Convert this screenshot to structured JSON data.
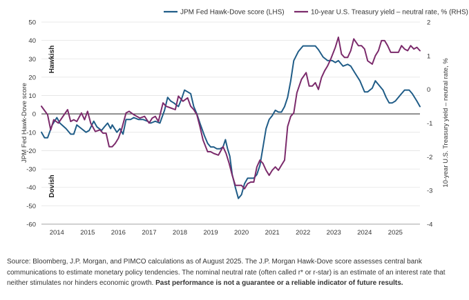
{
  "chart_data": {
    "type": "line",
    "legend_position": "top",
    "grid": true,
    "x_ticks": [
      "2014",
      "2015",
      "2016",
      "2017",
      "2018",
      "2019",
      "2020",
      "2021",
      "2022",
      "2023",
      "2024",
      "2025"
    ],
    "y_left": {
      "label": "JPM Fed Hawk-Dove score",
      "ylim": [
        -60,
        50
      ],
      "ticks": [
        "50",
        "40",
        "30",
        "20",
        "10",
        "0",
        "-10",
        "-20",
        "-30",
        "-40",
        "-50",
        "-60"
      ]
    },
    "y_right": {
      "label": "10-year U.S. Treasury yield – neutral rate, %",
      "ylim": [
        -4,
        2
      ],
      "ticks": [
        "2",
        "1",
        "0",
        "-1",
        "-2",
        "-3",
        "-4"
      ]
    },
    "zone_labels": {
      "hawkish": "Hawkish",
      "dovish": "Dovish"
    },
    "series": [
      {
        "name": "JPM Fed Hawk-Dove score (LHS)",
        "axis": "left",
        "color": "#1f5c87",
        "points": [
          [
            2014.0,
            -10
          ],
          [
            2014.1,
            -13
          ],
          [
            2014.2,
            -13
          ],
          [
            2014.35,
            -6
          ],
          [
            2014.5,
            -2
          ],
          [
            2014.6,
            -5
          ],
          [
            2014.8,
            -8
          ],
          [
            2014.95,
            -11
          ],
          [
            2015.05,
            -11
          ],
          [
            2015.15,
            -6
          ],
          [
            2015.3,
            -8
          ],
          [
            2015.45,
            -10
          ],
          [
            2015.55,
            -9
          ],
          [
            2015.7,
            -4
          ],
          [
            2015.8,
            -7
          ],
          [
            2015.95,
            -9
          ],
          [
            2016.05,
            -7
          ],
          [
            2016.15,
            -5
          ],
          [
            2016.25,
            -8
          ],
          [
            2016.3,
            -6
          ],
          [
            2016.45,
            -10
          ],
          [
            2016.55,
            -8
          ],
          [
            2016.65,
            -11
          ],
          [
            2016.75,
            -3
          ],
          [
            2016.9,
            -3
          ],
          [
            2017.0,
            -2
          ],
          [
            2017.15,
            -3
          ],
          [
            2017.3,
            -3
          ],
          [
            2017.45,
            -4
          ],
          [
            2017.55,
            -5
          ],
          [
            2017.7,
            -4
          ],
          [
            2017.85,
            -5
          ],
          [
            2018.0,
            2
          ],
          [
            2018.1,
            9
          ],
          [
            2018.2,
            7
          ],
          [
            2018.3,
            6
          ],
          [
            2018.45,
            4
          ],
          [
            2018.55,
            8
          ],
          [
            2018.65,
            13
          ],
          [
            2018.75,
            12
          ],
          [
            2018.85,
            11
          ],
          [
            2018.95,
            4
          ],
          [
            2019.05,
            0
          ],
          [
            2019.15,
            -5
          ],
          [
            2019.3,
            -12
          ],
          [
            2019.4,
            -16
          ],
          [
            2019.5,
            -18
          ],
          [
            2019.6,
            -18
          ],
          [
            2019.7,
            -19
          ],
          [
            2019.8,
            -19
          ],
          [
            2019.9,
            -18
          ],
          [
            2019.98,
            -14
          ],
          [
            2020.05,
            -19
          ],
          [
            2020.12,
            -23
          ],
          [
            2020.2,
            -33
          ],
          [
            2020.3,
            -40
          ],
          [
            2020.4,
            -46
          ],
          [
            2020.5,
            -44
          ],
          [
            2020.6,
            -38
          ],
          [
            2020.7,
            -35
          ],
          [
            2020.8,
            -35
          ],
          [
            2020.9,
            -35
          ],
          [
            2021.0,
            -33
          ],
          [
            2021.1,
            -28
          ],
          [
            2021.2,
            -18
          ],
          [
            2021.3,
            -8
          ],
          [
            2021.4,
            -3
          ],
          [
            2021.5,
            -1
          ],
          [
            2021.6,
            2
          ],
          [
            2021.7,
            1
          ],
          [
            2021.8,
            1
          ],
          [
            2021.9,
            4
          ],
          [
            2022.0,
            9
          ],
          [
            2022.1,
            18
          ],
          [
            2022.2,
            29
          ],
          [
            2022.35,
            34
          ],
          [
            2022.5,
            37
          ],
          [
            2022.65,
            37
          ],
          [
            2022.8,
            37
          ],
          [
            2022.9,
            37
          ],
          [
            2023.0,
            35
          ],
          [
            2023.15,
            31
          ],
          [
            2023.3,
            29
          ],
          [
            2023.45,
            29
          ],
          [
            2023.55,
            28
          ],
          [
            2023.65,
            29
          ],
          [
            2023.8,
            26
          ],
          [
            2023.95,
            27
          ],
          [
            2024.05,
            26
          ],
          [
            2024.2,
            22
          ],
          [
            2024.35,
            18
          ],
          [
            2024.5,
            12
          ],
          [
            2024.6,
            12
          ],
          [
            2024.75,
            14
          ],
          [
            2024.85,
            18
          ],
          [
            2024.95,
            16
          ],
          [
            2025.1,
            13
          ],
          [
            2025.2,
            9
          ],
          [
            2025.3,
            6
          ],
          [
            2025.4,
            6
          ],
          [
            2025.5,
            7
          ],
          [
            2025.65,
            10
          ],
          [
            2025.8,
            13
          ],
          [
            2025.95,
            13
          ],
          [
            2026.05,
            11
          ],
          [
            2026.2,
            7
          ],
          [
            2026.3,
            4
          ]
        ]
      },
      {
        "name": "10-year U.S. Treasury yield – neutral rate, % (RHS)",
        "axis": "right",
        "color": "#7b2a6b",
        "points": [
          [
            2014.0,
            -0.5
          ],
          [
            2014.12,
            -0.65
          ],
          [
            2014.2,
            -0.75
          ],
          [
            2014.3,
            -1.2
          ],
          [
            2014.4,
            -0.9
          ],
          [
            2014.55,
            -1.0
          ],
          [
            2014.7,
            -0.8
          ],
          [
            2014.85,
            -0.6
          ],
          [
            2014.95,
            -0.95
          ],
          [
            2015.05,
            -0.9
          ],
          [
            2015.15,
            -0.95
          ],
          [
            2015.3,
            -0.7
          ],
          [
            2015.4,
            -0.9
          ],
          [
            2015.5,
            -0.65
          ],
          [
            2015.6,
            -1.0
          ],
          [
            2015.75,
            -1.25
          ],
          [
            2015.9,
            -1.2
          ],
          [
            2016.0,
            -1.3
          ],
          [
            2016.1,
            -1.3
          ],
          [
            2016.2,
            -1.7
          ],
          [
            2016.3,
            -1.7
          ],
          [
            2016.4,
            -1.6
          ],
          [
            2016.5,
            -1.45
          ],
          [
            2016.6,
            -1.2
          ],
          [
            2016.75,
            -0.7
          ],
          [
            2016.85,
            -0.65
          ],
          [
            2017.0,
            -0.75
          ],
          [
            2017.1,
            -0.8
          ],
          [
            2017.2,
            -0.85
          ],
          [
            2017.35,
            -0.8
          ],
          [
            2017.5,
            -1.0
          ],
          [
            2017.6,
            -0.85
          ],
          [
            2017.7,
            -0.8
          ],
          [
            2017.8,
            -0.95
          ],
          [
            2017.95,
            -0.4
          ],
          [
            2018.05,
            -0.5
          ],
          [
            2018.2,
            -0.55
          ],
          [
            2018.35,
            -0.6
          ],
          [
            2018.45,
            -0.2
          ],
          [
            2018.6,
            -0.35
          ],
          [
            2018.75,
            -0.25
          ],
          [
            2018.85,
            -0.5
          ],
          [
            2018.95,
            -0.6
          ],
          [
            2019.05,
            -0.75
          ],
          [
            2019.15,
            -1.1
          ],
          [
            2019.25,
            -1.5
          ],
          [
            2019.4,
            -1.85
          ],
          [
            2019.5,
            -1.85
          ],
          [
            2019.6,
            -1.9
          ],
          [
            2019.75,
            -1.95
          ],
          [
            2019.9,
            -1.7
          ],
          [
            2020.0,
            -1.9
          ],
          [
            2020.1,
            -2.2
          ],
          [
            2020.2,
            -2.55
          ],
          [
            2020.3,
            -2.85
          ],
          [
            2020.4,
            -2.85
          ],
          [
            2020.5,
            -2.85
          ],
          [
            2020.6,
            -2.95
          ],
          [
            2020.7,
            -2.8
          ],
          [
            2020.8,
            -2.75
          ],
          [
            2020.9,
            -2.75
          ],
          [
            2021.0,
            -2.3
          ],
          [
            2021.1,
            -2.1
          ],
          [
            2021.2,
            -2.2
          ],
          [
            2021.3,
            -2.4
          ],
          [
            2021.4,
            -2.55
          ],
          [
            2021.5,
            -2.4
          ],
          [
            2021.6,
            -2.3
          ],
          [
            2021.7,
            -2.4
          ],
          [
            2021.8,
            -2.25
          ],
          [
            2021.9,
            -2.1
          ],
          [
            2022.0,
            -1.1
          ],
          [
            2022.1,
            -0.8
          ],
          [
            2022.2,
            -0.7
          ],
          [
            2022.3,
            -0.1
          ],
          [
            2022.45,
            0.3
          ],
          [
            2022.6,
            0.5
          ],
          [
            2022.7,
            0.1
          ],
          [
            2022.8,
            0.1
          ],
          [
            2022.9,
            0.2
          ],
          [
            2023.0,
            0.0
          ],
          [
            2023.1,
            0.35
          ],
          [
            2023.2,
            0.55
          ],
          [
            2023.3,
            0.7
          ],
          [
            2023.4,
            0.9
          ],
          [
            2023.55,
            1.25
          ],
          [
            2023.65,
            1.55
          ],
          [
            2023.75,
            1.05
          ],
          [
            2023.85,
            0.95
          ],
          [
            2023.95,
            0.95
          ],
          [
            2024.05,
            1.15
          ],
          [
            2024.15,
            1.5
          ],
          [
            2024.3,
            1.3
          ],
          [
            2024.4,
            1.3
          ],
          [
            2024.5,
            1.2
          ],
          [
            2024.6,
            0.85
          ],
          [
            2024.75,
            0.75
          ],
          [
            2024.85,
            1.0
          ],
          [
            2024.95,
            1.15
          ],
          [
            2025.05,
            1.45
          ],
          [
            2025.15,
            1.45
          ],
          [
            2025.25,
            1.3
          ],
          [
            2025.35,
            1.1
          ],
          [
            2025.5,
            1.1
          ],
          [
            2025.6,
            1.1
          ],
          [
            2025.7,
            1.3
          ],
          [
            2025.8,
            1.2
          ],
          [
            2025.9,
            1.15
          ],
          [
            2026.0,
            1.3
          ],
          [
            2026.1,
            1.2
          ],
          [
            2026.2,
            1.25
          ],
          [
            2026.3,
            1.15
          ]
        ]
      }
    ]
  },
  "source": {
    "text": "Source: Bloomberg, J.P. Morgan, and PIMCO calculations as of August 2025. The J.P. Morgan Hawk-Dove score assesses central bank communications to estimate monetary policy tendencies. The nominal neutral rate (often called r* or r-star) is an estimate of an interest rate that neither stimulates nor hinders economic growth.",
    "disclaimer": "Past performance is not a guarantee or a reliable indicator of future results."
  }
}
